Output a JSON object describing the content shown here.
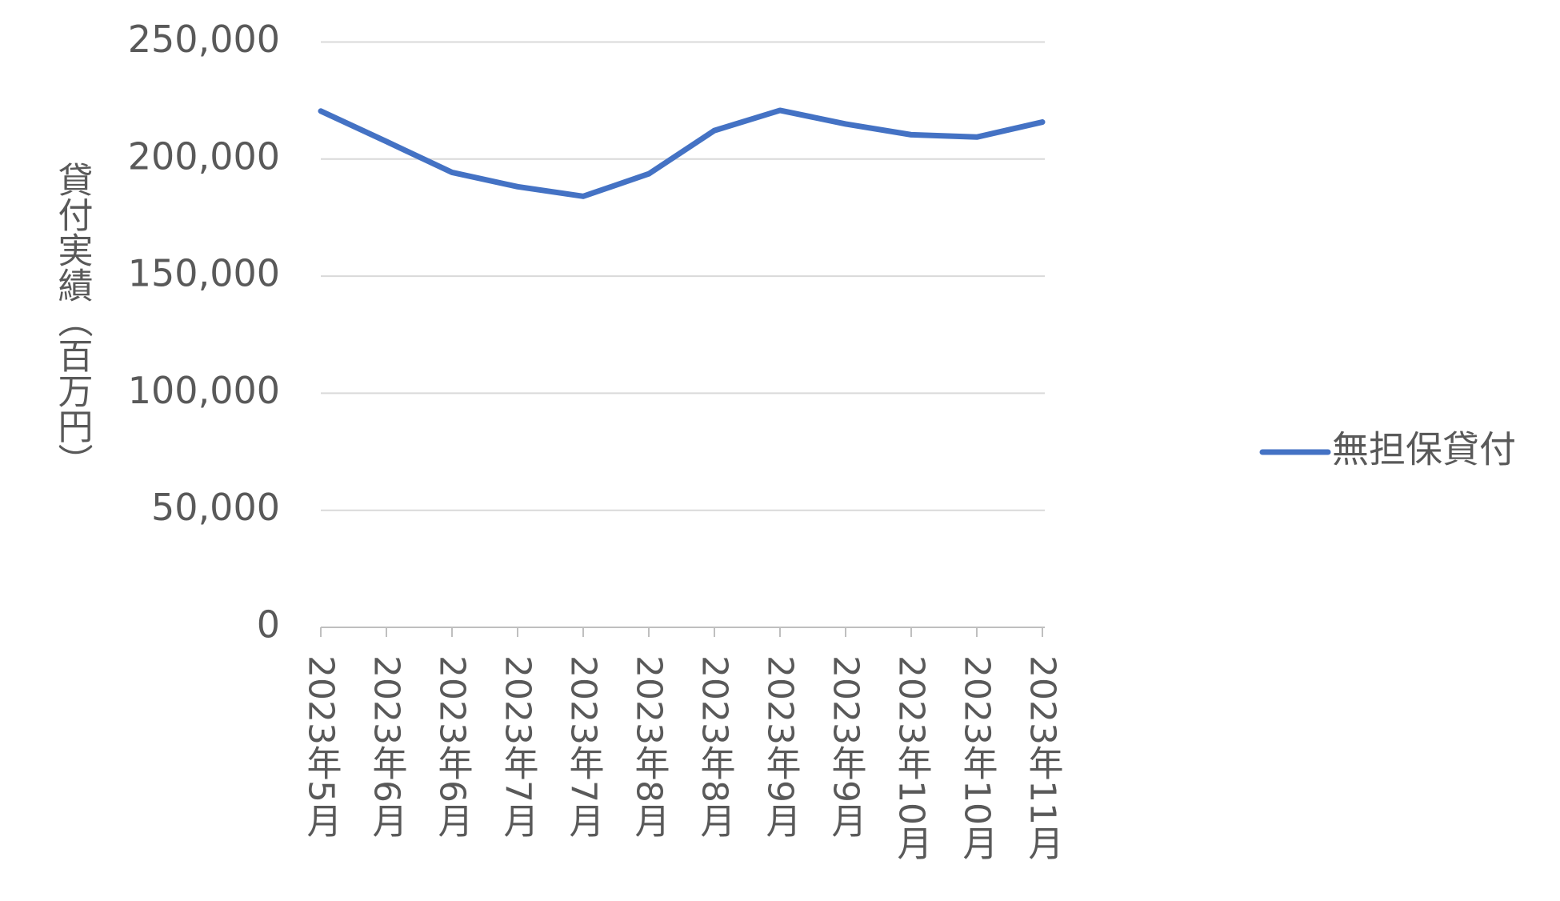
{
  "chart_data": {
    "type": "line",
    "y_axis_label": "貸付実績（百万円）",
    "categories": [
      "2023年5月",
      "2023年6月",
      "2023年6月",
      "2023年7月",
      "2023年7月",
      "2023年8月",
      "2023年8月",
      "2023年9月",
      "2023年9月",
      "2023年10月",
      "2023年10月",
      "2023年11月"
    ],
    "series": [
      {
        "name": "無担保貸付",
        "color": "#4472c4",
        "values": [
          220500,
          207500,
          194300,
          188200,
          184100,
          193700,
          212200,
          220800,
          215000,
          210400,
          209400,
          215800
        ]
      }
    ],
    "ylim": [
      0,
      250000
    ],
    "yticks": [
      {
        "value": 0,
        "label": "0"
      },
      {
        "value": 50000,
        "label": "50,000"
      },
      {
        "value": 100000,
        "label": "100,000"
      },
      {
        "value": 150000,
        "label": "150,000"
      },
      {
        "value": 200000,
        "label": "200,000"
      },
      {
        "value": 250000,
        "label": "250,000"
      }
    ],
    "grid": true,
    "legend": "right"
  }
}
